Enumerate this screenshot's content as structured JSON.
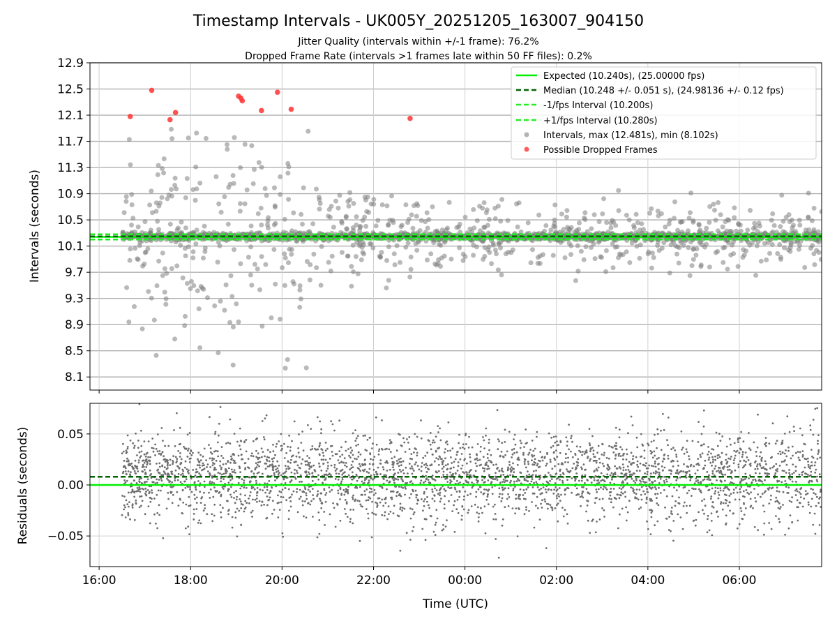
{
  "figure": {
    "title": "Timestamp Intervals - UK005Y_20251205_163007_904150",
    "subtitle_line1": "Jitter Quality (intervals within +/-1 frame): 76.2%",
    "subtitle_line2": "Dropped Frame Rate (intervals >1 frames late within 50 FF files): 0.2%"
  },
  "colors": {
    "expected": "#00ee00",
    "median": "#006400",
    "interval_band": "#22ee22",
    "points": "#808080",
    "dropped": "#ff3333",
    "grid": "#b0b0b0"
  },
  "chart_data": [
    {
      "type": "scatter",
      "panel": "intervals",
      "xlabel": "",
      "ylabel": "Intervals (seconds)",
      "x_unit": "hours since 16:00 UTC",
      "xlim": [
        -0.2,
        15.8
      ],
      "ylim": [
        7.9,
        12.9
      ],
      "yticks": [
        8.1,
        8.5,
        8.9,
        9.3,
        9.7,
        10.1,
        10.5,
        10.9,
        11.3,
        11.7,
        12.1,
        12.5,
        12.9
      ],
      "ytick_labels": [
        "8.1",
        "8.5",
        "8.9",
        "9.3",
        "9.7",
        "10.1",
        "10.5",
        "10.9",
        "11.3",
        "11.7",
        "12.1",
        "12.5",
        "12.9"
      ],
      "grid": true,
      "lines": [
        {
          "name": "expected",
          "label": "Expected (10.240s), (25.00000 fps)",
          "y": 10.24,
          "style": "solid"
        },
        {
          "name": "median",
          "label": "Median (10.248 +/- 0.051 s), (24.98136 +/- 0.12 fps)",
          "y": 10.248,
          "style": "dashed"
        },
        {
          "name": "minus-fps",
          "label": "-1/fps Interval (10.200s)",
          "y": 10.2,
          "style": "dashed"
        },
        {
          "name": "plus-fps",
          "label": "+1/fps Interval (10.280s)",
          "y": 10.28,
          "style": "dashed"
        }
      ],
      "series": [
        {
          "name": "intervals",
          "label": "Intervals, max (12.481s), min (8.102s)",
          "max": 12.481,
          "min": 8.102,
          "x_start": 0.5,
          "x_end": 15.8,
          "count_core": 1400,
          "count_scatter": 780
        },
        {
          "name": "dropped",
          "label": "Possible Dropped Frames",
          "points": [
            [
              0.68,
              12.08
            ],
            [
              1.15,
              12.48
            ],
            [
              1.55,
              12.03
            ],
            [
              1.67,
              12.14
            ],
            [
              3.05,
              12.39
            ],
            [
              3.1,
              12.36
            ],
            [
              3.13,
              12.32
            ],
            [
              3.55,
              12.17
            ],
            [
              3.9,
              12.45
            ],
            [
              4.2,
              12.19
            ],
            [
              6.8,
              12.05
            ]
          ]
        }
      ],
      "legend": "top-right"
    },
    {
      "type": "scatter",
      "panel": "residuals",
      "xlabel": "Time (UTC)",
      "ylabel": "Residuals (seconds)",
      "x_unit": "hours since 16:00 UTC",
      "xlim": [
        -0.2,
        15.8
      ],
      "ylim": [
        -0.08,
        0.08
      ],
      "yticks": [
        -0.05,
        0.0,
        0.05
      ],
      "ytick_labels": [
        "−0.05",
        "0.00",
        "0.05"
      ],
      "xticks": [
        0,
        2,
        4,
        6,
        8,
        10,
        12,
        14
      ],
      "xtick_labels": [
        "16:00",
        "18:00",
        "20:00",
        "22:00",
        "00:00",
        "02:00",
        "04:00",
        "06:00"
      ],
      "grid": true,
      "lines": [
        {
          "name": "zero",
          "y": 0.0,
          "style": "solid"
        },
        {
          "name": "median-residual",
          "y": 0.008,
          "style": "dashed"
        }
      ],
      "series": [
        {
          "name": "residuals",
          "x_start": 0.5,
          "x_end": 15.8,
          "count": 3300
        }
      ]
    }
  ]
}
